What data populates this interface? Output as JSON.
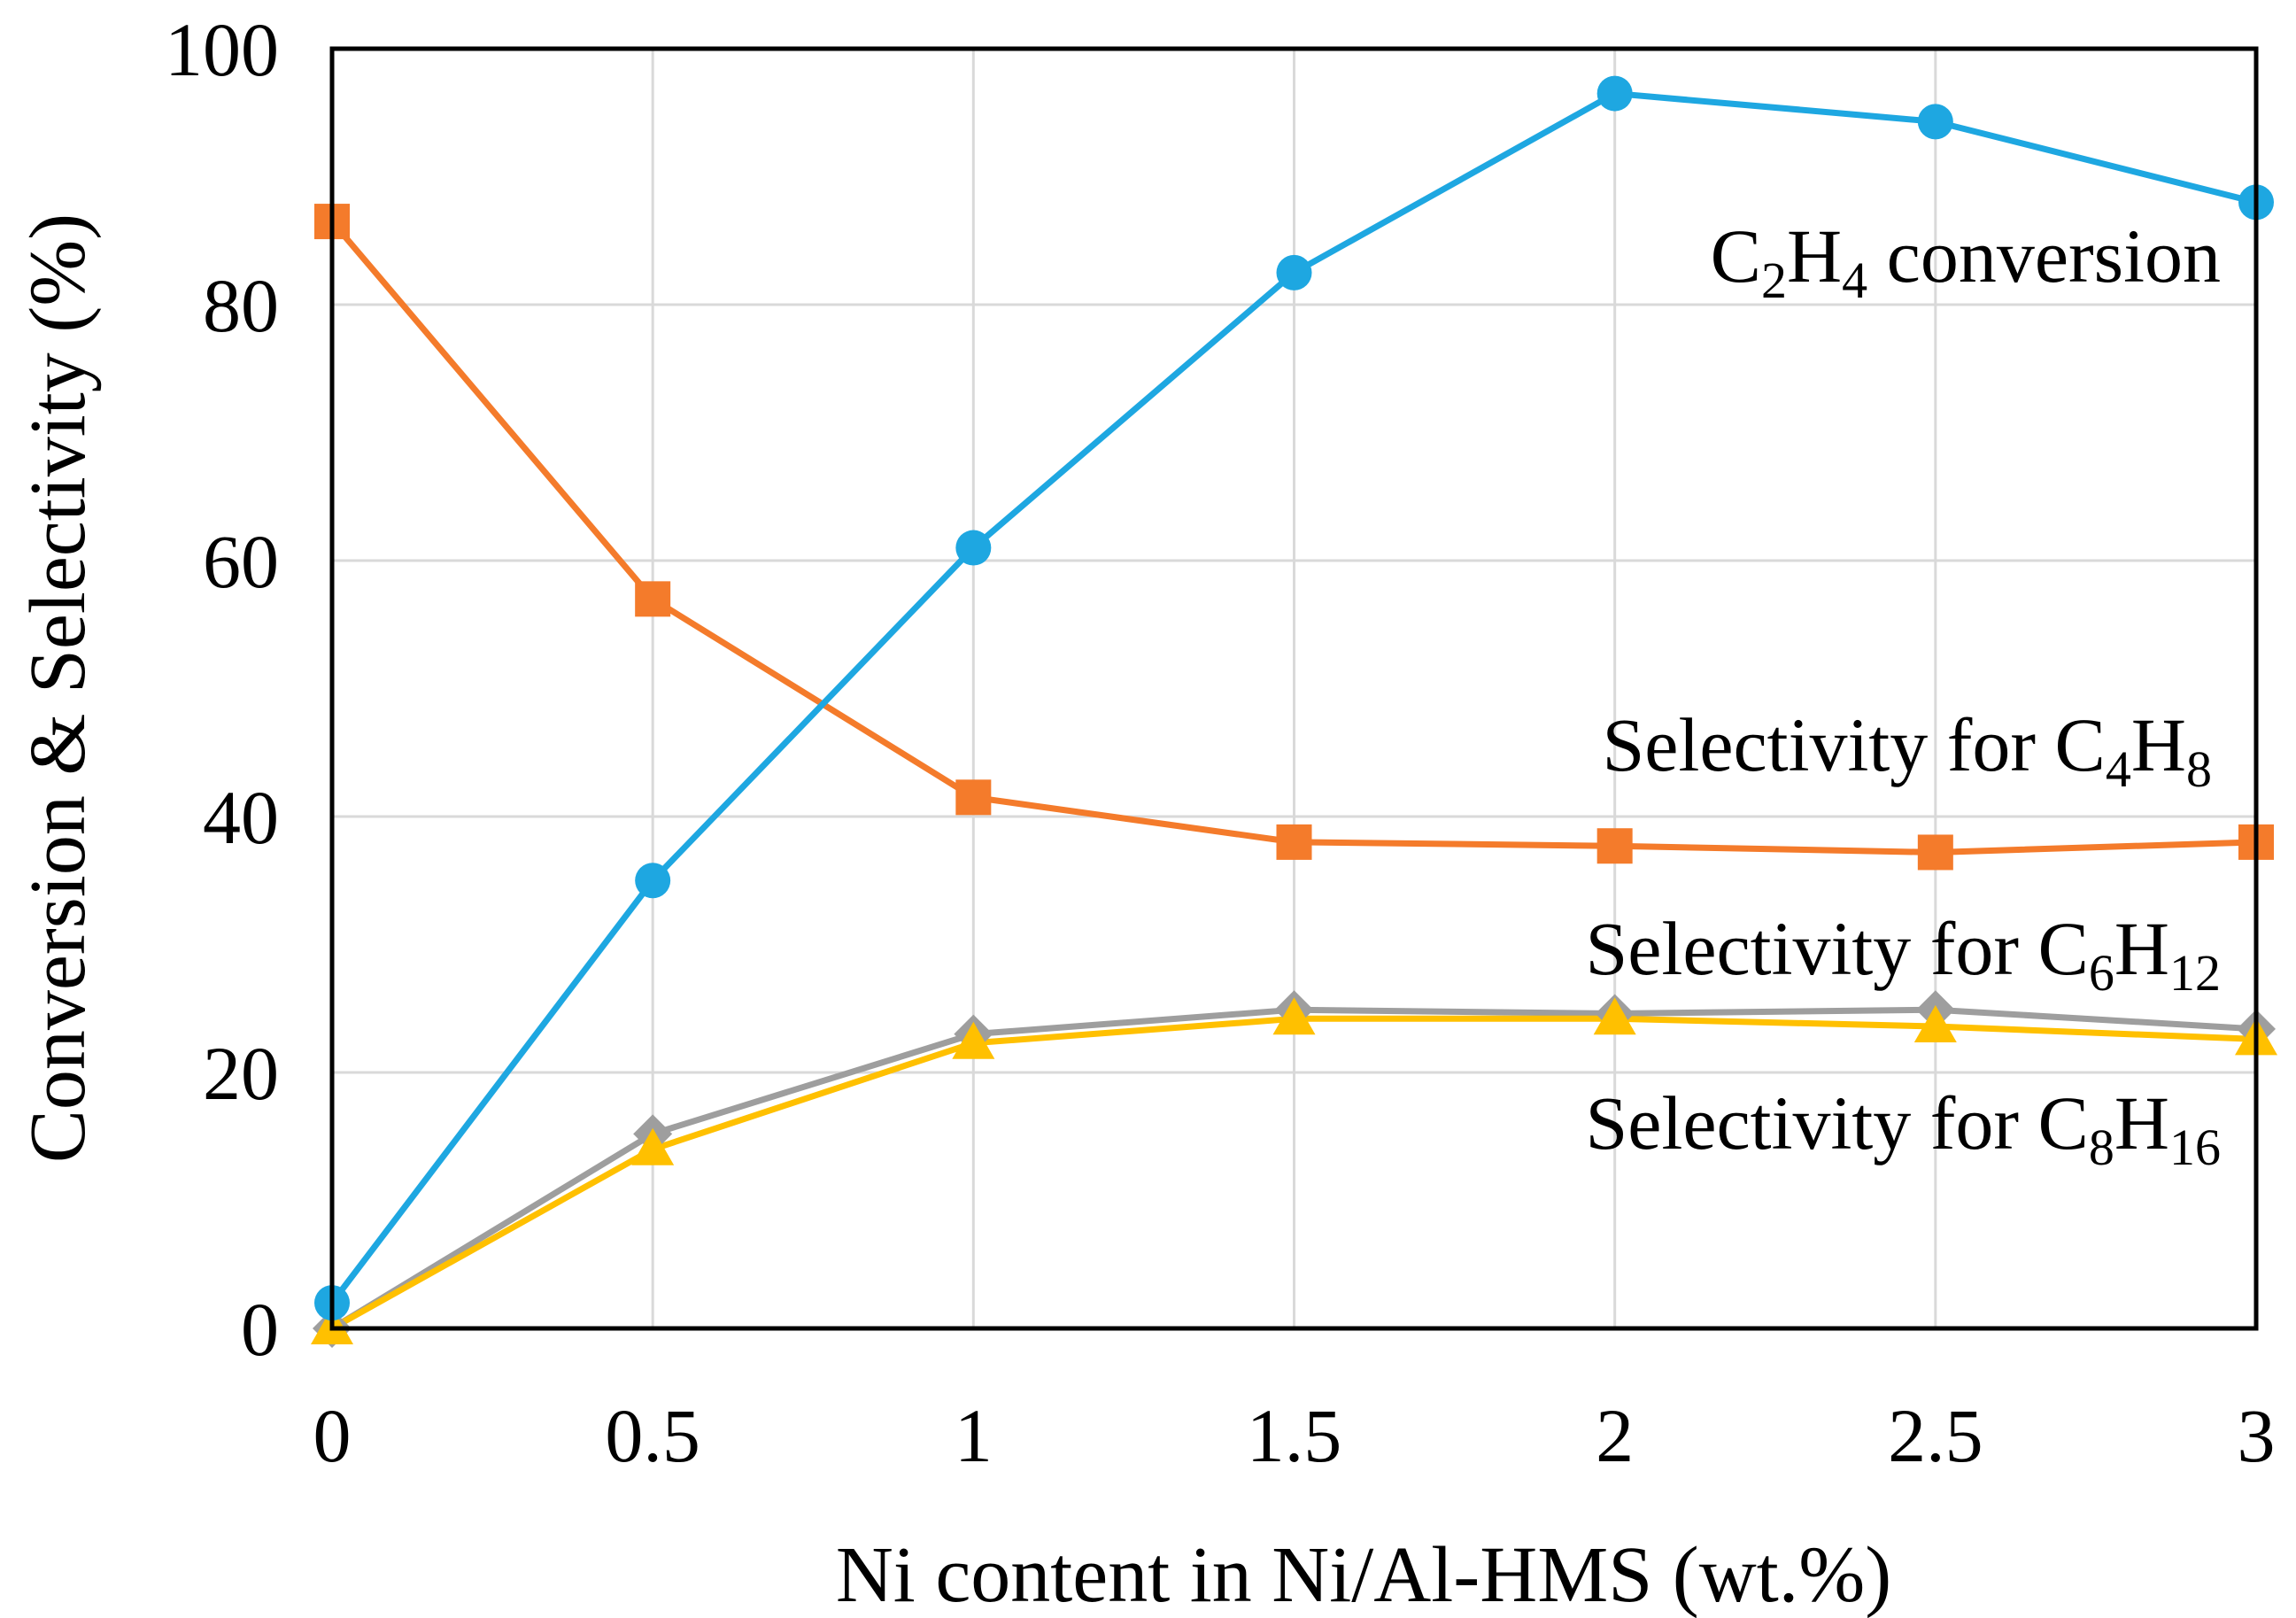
{
  "chart_data": {
    "type": "line",
    "xlabel": "Ni content in Ni/Al-HMS (wt.%)",
    "ylabel": "Conversion & Selectivity (%)",
    "x": [
      0,
      0.5,
      1,
      1.5,
      2,
      2.5,
      3
    ],
    "x_tick_labels": [
      "0",
      "0.5",
      "1",
      "1.5",
      "2",
      "2.5",
      "3"
    ],
    "y_tick_labels": [
      "0",
      "20",
      "40",
      "60",
      "80",
      "100"
    ],
    "xlim": [
      0,
      3
    ],
    "ylim": [
      0,
      100
    ],
    "grid": true,
    "series": [
      {
        "name": "C2H4 conversion",
        "label_parts": [
          {
            "t": "C",
            "s": false
          },
          {
            "t": "2",
            "s": true
          },
          {
            "t": "H",
            "s": false
          },
          {
            "t": "4",
            "s": true
          },
          {
            "t": " conversion",
            "s": false
          }
        ],
        "color": "#1ea7e1",
        "marker": "circle",
        "values": [
          2,
          35,
          61,
          82.5,
          96.5,
          94.3,
          88
        ]
      },
      {
        "name": "Selectivity for C4H8",
        "label_parts": [
          {
            "t": "Selectivity for C",
            "s": false
          },
          {
            "t": "4",
            "s": true
          },
          {
            "t": "H",
            "s": false
          },
          {
            "t": "8",
            "s": true
          }
        ],
        "color": "#f47b2b",
        "marker": "square",
        "values": [
          86.5,
          57,
          41.5,
          38,
          37.7,
          37.2,
          38
        ]
      },
      {
        "name": "Selectivity for C6H12",
        "label_parts": [
          {
            "t": "Selectivity for C",
            "s": false
          },
          {
            "t": "6",
            "s": true
          },
          {
            "t": "H",
            "s": false
          },
          {
            "t": "12",
            "s": true
          }
        ],
        "color": "#9e9e9e",
        "marker": "diamond",
        "values": [
          0,
          15.2,
          23,
          24.9,
          24.6,
          24.9,
          23.4
        ]
      },
      {
        "name": "Selectivity for C8H16",
        "label_parts": [
          {
            "t": "Selectivity for C",
            "s": false
          },
          {
            "t": "8",
            "s": true
          },
          {
            "t": "H",
            "s": false
          },
          {
            "t": "16",
            "s": true
          }
        ],
        "color": "#ffc000",
        "marker": "triangle",
        "values": [
          0,
          14,
          22.3,
          24.2,
          24.2,
          23.6,
          22.6
        ]
      }
    ]
  }
}
